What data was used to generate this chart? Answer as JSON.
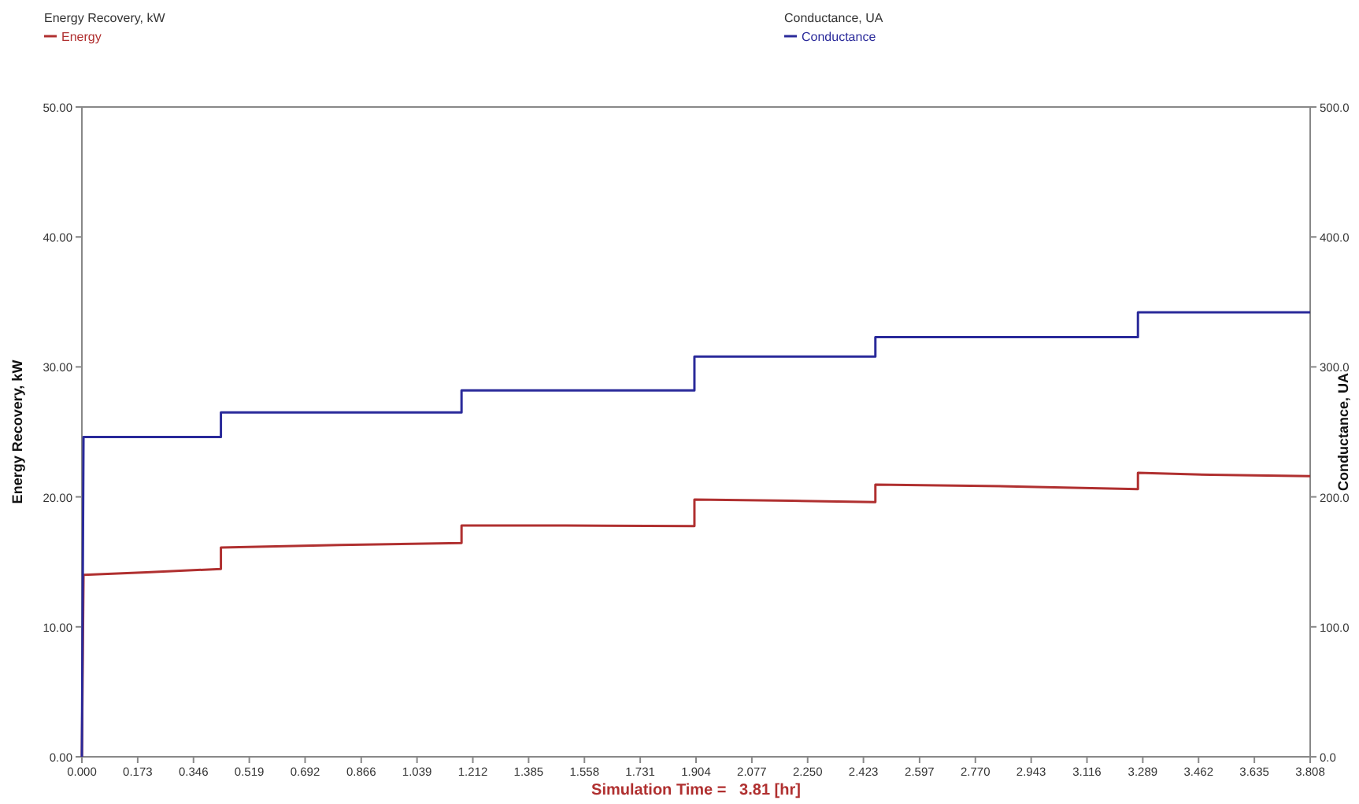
{
  "chart_data": {
    "type": "line",
    "xlabel": "Simulation Time =   3.81 [hr]",
    "ylabel": "Energy Recovery, kW",
    "y2label": "Conductance, UA",
    "annotations": [
      "Energy Recovery, kW",
      "Conductance, UA"
    ],
    "legend": "top",
    "grid": false,
    "marker": "none",
    "line_style": "solid",
    "xlim": [
      0,
      3.808
    ],
    "ylim": [
      0,
      50
    ],
    "y2lim": [
      0,
      500
    ],
    "xticks": [
      {
        "value": 0,
        "label": "0.000"
      },
      {
        "value": 0.173,
        "label": "0.173"
      },
      {
        "value": 0.346,
        "label": "0.346"
      },
      {
        "value": 0.519,
        "label": "0.519"
      },
      {
        "value": 0.692,
        "label": "0.692"
      },
      {
        "value": 0.866,
        "label": "0.866"
      },
      {
        "value": 1.039,
        "label": "1.039"
      },
      {
        "value": 1.212,
        "label": "1.212"
      },
      {
        "value": 1.385,
        "label": "1.385"
      },
      {
        "value": 1.558,
        "label": "1.558"
      },
      {
        "value": 1.731,
        "label": "1.731"
      },
      {
        "value": 1.904,
        "label": "1.904"
      },
      {
        "value": 2.077,
        "label": "2.077"
      },
      {
        "value": 2.25,
        "label": "2.250"
      },
      {
        "value": 2.423,
        "label": "2.423"
      },
      {
        "value": 2.597,
        "label": "2.597"
      },
      {
        "value": 2.77,
        "label": "2.770"
      },
      {
        "value": 2.943,
        "label": "2.943"
      },
      {
        "value": 3.116,
        "label": "3.116"
      },
      {
        "value": 3.289,
        "label": "3.289"
      },
      {
        "value": 3.462,
        "label": "3.462"
      },
      {
        "value": 3.635,
        "label": "3.635"
      },
      {
        "value": 3.808,
        "label": "3.808"
      }
    ],
    "yticks": [
      {
        "value": 0,
        "label": "0.00"
      },
      {
        "value": 10,
        "label": "10.00"
      },
      {
        "value": 20,
        "label": "20.00"
      },
      {
        "value": 30,
        "label": "30.00"
      },
      {
        "value": 40,
        "label": "40.00"
      },
      {
        "value": 50,
        "label": "50.00"
      }
    ],
    "y2ticks": [
      {
        "value": 0,
        "label": "0.0"
      },
      {
        "value": 100,
        "label": "100.0"
      },
      {
        "value": 200,
        "label": "200.0"
      },
      {
        "value": 300,
        "label": "300.0"
      },
      {
        "value": 400,
        "label": "400.0"
      },
      {
        "value": 500,
        "label": "500.0"
      }
    ],
    "series": [
      {
        "name": "Energy",
        "color": "#b03030",
        "x": [
          0,
          0.005,
          0.2,
          0.431,
          0.431,
          0.8,
          1.177,
          1.177,
          1.5,
          1.899,
          1.899,
          2.2,
          2.46,
          2.46,
          2.9,
          3.274,
          3.274,
          3.5,
          3.808
        ],
        "values": [
          0,
          14.0,
          14.2,
          14.45,
          16.1,
          16.3,
          16.45,
          17.8,
          17.8,
          17.75,
          19.8,
          19.7,
          19.6,
          20.95,
          20.8,
          20.6,
          21.85,
          21.7,
          21.6
        ]
      },
      {
        "name": "Conductance",
        "color": "#2a2a9a",
        "axis": "y2",
        "x": [
          0,
          0.005,
          0.431,
          0.431,
          1.177,
          1.177,
          1.899,
          1.899,
          2.46,
          2.46,
          3.274,
          3.274,
          3.808
        ],
        "values": [
          0,
          246,
          246,
          265,
          265,
          282,
          282,
          308,
          308,
          323,
          323,
          342,
          342
        ]
      }
    ]
  }
}
